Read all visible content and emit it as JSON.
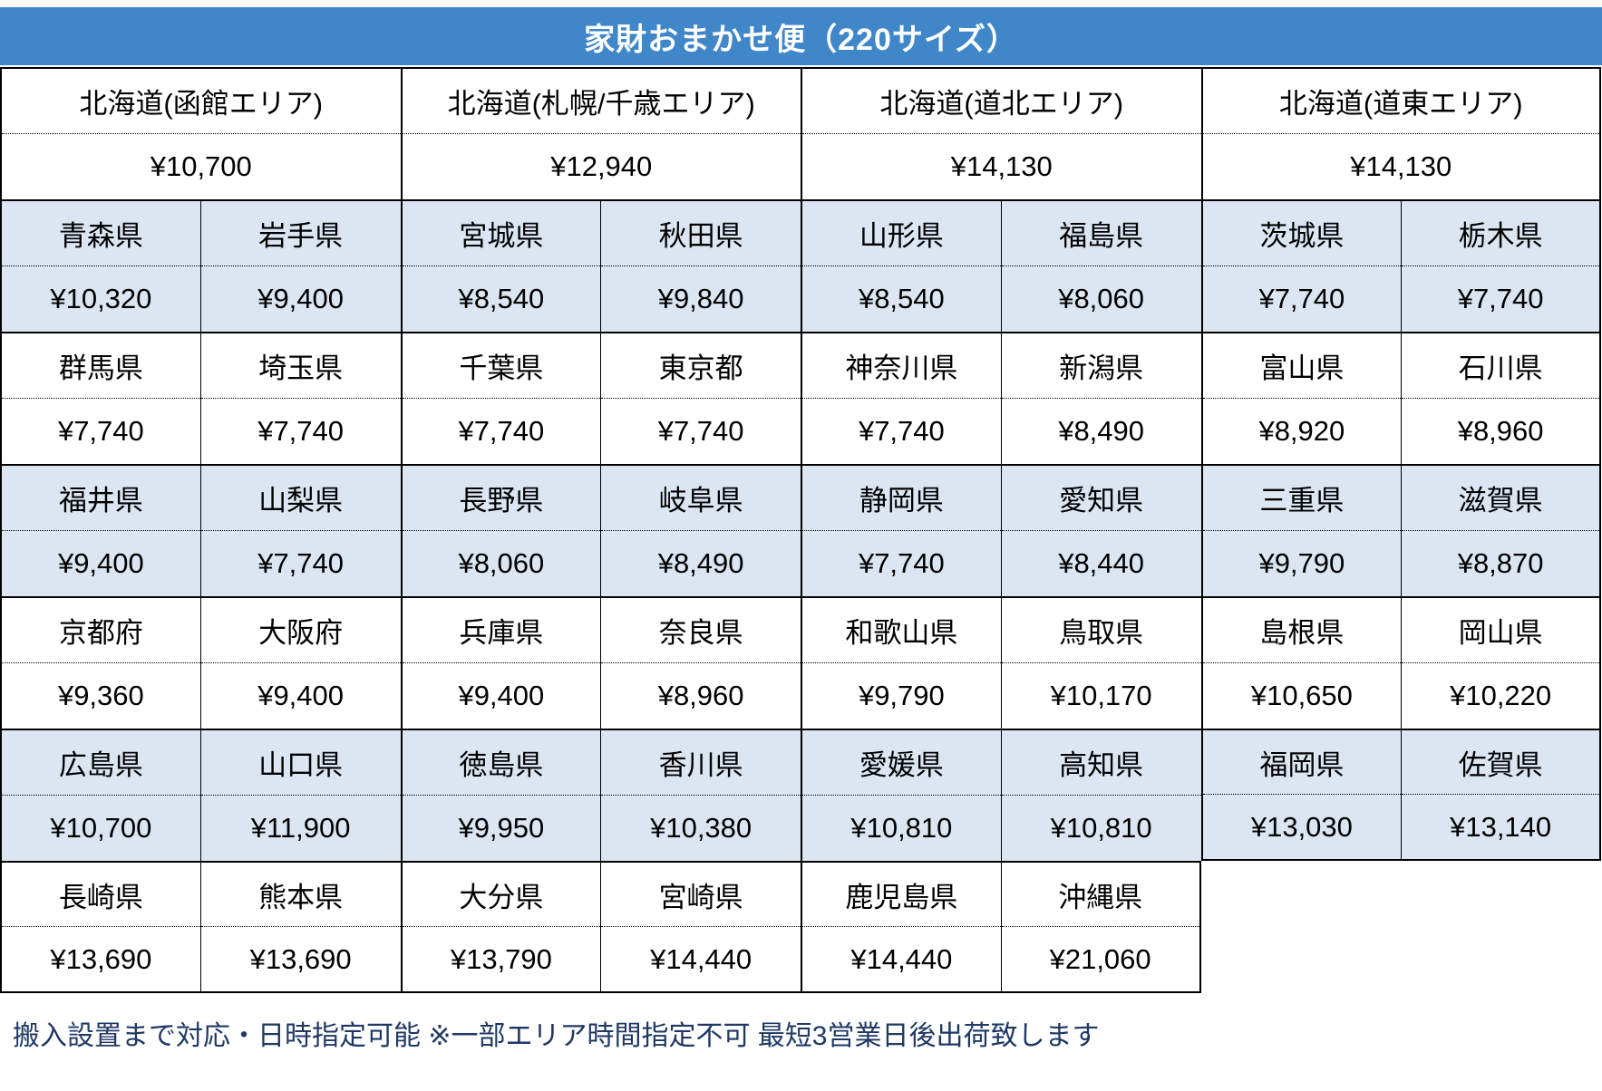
{
  "title": "家財おまかせ便（220サイズ）",
  "colors": {
    "header_bg": "#3f87c9",
    "header_text": "#ffffff",
    "shaded_row_bg": "#dce6f2",
    "plain_row_bg": "#ffffff",
    "border": "#000000",
    "footer_text": "#1f3864"
  },
  "hokkaido": [
    {
      "name": "北海道(函館エリア)",
      "price": "¥10,700"
    },
    {
      "name": "北海道(札幌/千歳エリア)",
      "price": "¥12,940"
    },
    {
      "name": "北海道(道北エリア)",
      "price": "¥14,130"
    },
    {
      "name": "北海道(道東エリア)",
      "price": "¥14,130"
    }
  ],
  "blocks": [
    {
      "shaded": true,
      "cells": [
        {
          "name": "青森県",
          "price": "¥10,320"
        },
        {
          "name": "岩手県",
          "price": "¥9,400"
        },
        {
          "name": "宮城県",
          "price": "¥8,540"
        },
        {
          "name": "秋田県",
          "price": "¥9,840"
        },
        {
          "name": "山形県",
          "price": "¥8,540"
        },
        {
          "name": "福島県",
          "price": "¥8,060"
        },
        {
          "name": "茨城県",
          "price": "¥7,740"
        },
        {
          "name": "栃木県",
          "price": "¥7,740"
        }
      ]
    },
    {
      "shaded": false,
      "cells": [
        {
          "name": "群馬県",
          "price": "¥7,740"
        },
        {
          "name": "埼玉県",
          "price": "¥7,740"
        },
        {
          "name": "千葉県",
          "price": "¥7,740"
        },
        {
          "name": "東京都",
          "price": "¥7,740"
        },
        {
          "name": "神奈川県",
          "price": "¥7,740"
        },
        {
          "name": "新潟県",
          "price": "¥8,490"
        },
        {
          "name": "富山県",
          "price": "¥8,920"
        },
        {
          "name": "石川県",
          "price": "¥8,960"
        }
      ]
    },
    {
      "shaded": true,
      "cells": [
        {
          "name": "福井県",
          "price": "¥9,400"
        },
        {
          "name": "山梨県",
          "price": "¥7,740"
        },
        {
          "name": "長野県",
          "price": "¥8,060"
        },
        {
          "name": "岐阜県",
          "price": "¥8,490"
        },
        {
          "name": "静岡県",
          "price": "¥7,740"
        },
        {
          "name": "愛知県",
          "price": "¥8,440"
        },
        {
          "name": "三重県",
          "price": "¥9,790"
        },
        {
          "name": "滋賀県",
          "price": "¥8,870"
        }
      ]
    },
    {
      "shaded": false,
      "cells": [
        {
          "name": "京都府",
          "price": "¥9,360"
        },
        {
          "name": "大阪府",
          "price": "¥9,400"
        },
        {
          "name": "兵庫県",
          "price": "¥9,400"
        },
        {
          "name": "奈良県",
          "price": "¥8,960"
        },
        {
          "name": "和歌山県",
          "price": "¥9,790"
        },
        {
          "name": "鳥取県",
          "price": "¥10,170"
        },
        {
          "name": "島根県",
          "price": "¥10,650"
        },
        {
          "name": "岡山県",
          "price": "¥10,220"
        }
      ]
    },
    {
      "shaded": true,
      "cells": [
        {
          "name": "広島県",
          "price": "¥10,700"
        },
        {
          "name": "山口県",
          "price": "¥11,900"
        },
        {
          "name": "徳島県",
          "price": "¥9,950"
        },
        {
          "name": "香川県",
          "price": "¥10,380"
        },
        {
          "name": "愛媛県",
          "price": "¥10,810"
        },
        {
          "name": "高知県",
          "price": "¥10,810"
        },
        {
          "name": "福岡県",
          "price": "¥13,030"
        },
        {
          "name": "佐賀県",
          "price": "¥13,140"
        }
      ]
    },
    {
      "shaded": false,
      "cells": [
        {
          "name": "長崎県",
          "price": "¥13,690"
        },
        {
          "name": "熊本県",
          "price": "¥13,690"
        },
        {
          "name": "大分県",
          "price": "¥13,790"
        },
        {
          "name": "宮崎県",
          "price": "¥14,440"
        },
        {
          "name": "鹿児島県",
          "price": "¥14,440"
        },
        {
          "name": "沖縄県",
          "price": "¥21,060"
        }
      ]
    }
  ],
  "footer": "搬入設置まで対応・日時指定可能 ※一部エリア時間指定不可 最短3営業日後出荷致します"
}
